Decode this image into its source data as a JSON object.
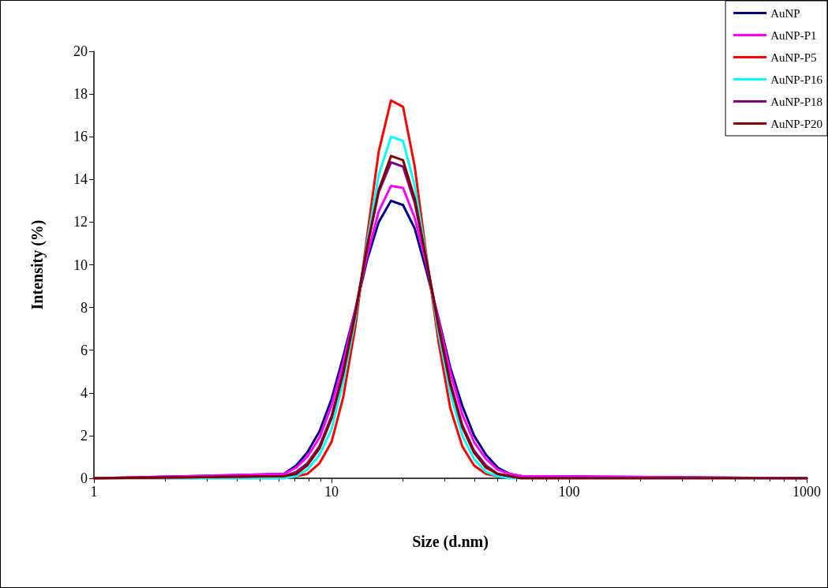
{
  "chart_data": {
    "type": "line",
    "xlabel": "Size (d.nm)",
    "ylabel": "Intensity (%)",
    "x": [
      1,
      6.3,
      7.1,
      7.9,
      8.9,
      10,
      11.2,
      12.6,
      14.1,
      15.8,
      17.8,
      20,
      22.4,
      25.1,
      28.2,
      31.6,
      35.5,
      39.8,
      44.7,
      50.1,
      56.2,
      63.1,
      1000
    ],
    "series": [
      {
        "name": "AuNP",
        "color": "#000080",
        "values": [
          0,
          0.2,
          0.6,
          1.2,
          2.2,
          3.7,
          5.7,
          7.9,
          10.2,
          12.0,
          13.0,
          12.8,
          11.7,
          9.7,
          7.5,
          5.2,
          3.4,
          2.0,
          1.1,
          0.5,
          0.2,
          0.1,
          0
        ]
      },
      {
        "name": "AuNP-P1",
        "color": "#ff00ff",
        "values": [
          0,
          0.2,
          0.5,
          1.0,
          1.9,
          3.4,
          5.4,
          7.9,
          10.4,
          12.5,
          13.7,
          13.6,
          12.2,
          10.0,
          7.4,
          5.0,
          3.0,
          1.7,
          0.9,
          0.4,
          0.2,
          0.1,
          0
        ]
      },
      {
        "name": "AuNP-P5",
        "color": "#ff0000",
        "values": [
          0,
          0,
          0.1,
          0.2,
          0.7,
          1.7,
          3.8,
          7.1,
          11.3,
          15.3,
          17.7,
          17.4,
          14.6,
          10.4,
          6.4,
          3.3,
          1.5,
          0.6,
          0.2,
          0.1,
          0,
          null,
          null
        ]
      },
      {
        "name": "AuNP-P16",
        "color": "#00ffff",
        "values": [
          0,
          0,
          0.1,
          0.4,
          1.1,
          2.3,
          4.5,
          7.5,
          11.0,
          14.2,
          16.0,
          15.8,
          13.7,
          10.3,
          6.8,
          4.0,
          2.0,
          0.9,
          0.3,
          0.1,
          0,
          0,
          0
        ]
      },
      {
        "name": "AuNP-P18",
        "color": "#800080",
        "values": [
          0,
          0.1,
          0.3,
          0.7,
          1.5,
          2.9,
          5.0,
          7.8,
          10.8,
          13.4,
          14.8,
          14.6,
          12.9,
          10.2,
          7.2,
          4.5,
          2.5,
          1.3,
          0.6,
          0.2,
          0.1,
          0,
          0
        ]
      },
      {
        "name": "AuNP-P20",
        "color": "#800000",
        "values": [
          0,
          0.1,
          0.2,
          0.6,
          1.4,
          2.8,
          4.9,
          7.7,
          10.8,
          13.5,
          15.1,
          14.9,
          13.1,
          10.2,
          7.1,
          4.4,
          2.4,
          1.2,
          0.5,
          0.2,
          0.1,
          0,
          0
        ]
      }
    ],
    "log": "x",
    "xlim": [
      1,
      1000
    ],
    "xticks": [
      1,
      10,
      100,
      1000
    ],
    "ylim": [
      0,
      20
    ],
    "yticks": [
      0,
      2,
      4,
      6,
      8,
      10,
      12,
      14,
      16,
      18,
      20
    ],
    "grid": false,
    "legend": "top right",
    "marker": "none",
    "line_style": "solid"
  }
}
